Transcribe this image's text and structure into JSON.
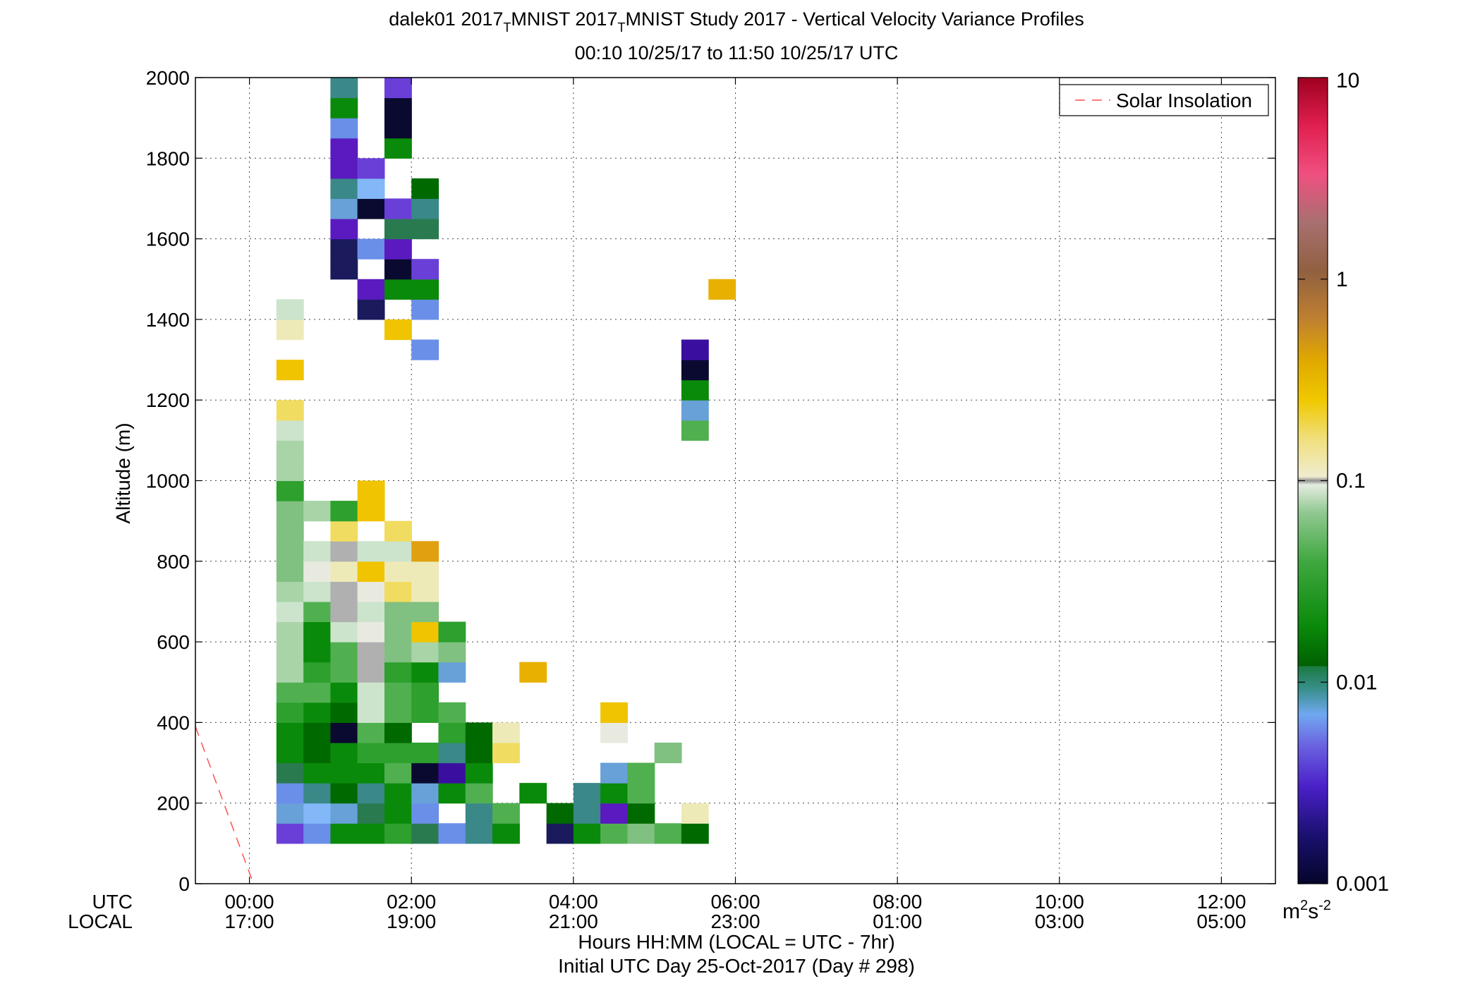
{
  "chart_data": {
    "type": "heatmap",
    "title_parts": [
      "dalek01 2017",
      "T",
      "MNIST 2017",
      "T",
      "MNIST Study 2017 - Vertical Velocity Variance Profiles"
    ],
    "subtitle": "00:10 10/25/17 to 11:50 10/25/17  UTC",
    "ylabel": "Altitude (m)",
    "xlabel": "Hours HH:MM  (LOCAL = UTC - 7hr)",
    "xlabel2": "Initial UTC Day 25-Oct-2017 (Day # 298)",
    "xaxis_row_labels": [
      "UTC",
      "LOCAL"
    ],
    "x_tick_hours": [
      0,
      2,
      4,
      6,
      8,
      10,
      12
    ],
    "x_ticks_utc": [
      "00:00",
      "02:00",
      "04:00",
      "06:00",
      "08:00",
      "10:00",
      "12:00"
    ],
    "x_ticks_local": [
      "17:00",
      "19:00",
      "21:00",
      "23:00",
      "01:00",
      "03:00",
      "05:00"
    ],
    "xlim_hours": [
      -0.667,
      12.667
    ],
    "ylim": [
      0,
      2000
    ],
    "y_ticks": [
      "0",
      "200",
      "400",
      "600",
      "800",
      "1000",
      "1200",
      "1400",
      "1600",
      "1800",
      "2000"
    ],
    "grid": true,
    "legend": {
      "label": "Solar Insolation",
      "placement": "top-right",
      "color": "#ff5050"
    },
    "solar_line": {
      "x_hours": [
        -0.667,
        0.05
      ],
      "y": [
        390,
        0
      ]
    },
    "colorbar": {
      "scale": "log",
      "range": [
        0.001,
        10
      ],
      "tick_labels": [
        "10",
        "1",
        "0.1",
        "0.01",
        "0.001"
      ],
      "units_base": "m",
      "units_sup1": "2",
      "units_mid": "s",
      "units_sup2": "-2"
    },
    "bin_width_hours": 0.3333,
    "bin_height_m": 50,
    "color_key": {
      "A": "#1a1a5c",
      "B": "#3a0fa0",
      "C": "#6a3fd8",
      "D": "#6a8fe8",
      "E": "#68a0d8",
      "F": "#3a8888",
      "G": "#2a7a50",
      "H": "#006a00",
      "I": "#0a8a0a",
      "J": "#2da02d",
      "K": "#50b050",
      "L": "#80c080",
      "M": "#a8d4a8",
      "N": "#cce4cc",
      "O": "#e8eae0",
      "P": "#eeeab8",
      "Q": "#f0dc60",
      "R": "#f0c400",
      "S": "#e8b000",
      "T": "#e0a010",
      "U": "#b0b0b0",
      "V": "#0a0a30",
      "W": "#5a1ac0",
      "X": "#82b8f8"
    },
    "cells": [
      [
        0.333,
        100,
        "C"
      ],
      [
        0.333,
        150,
        "E"
      ],
      [
        0.333,
        200,
        "D"
      ],
      [
        0.333,
        250,
        "G"
      ],
      [
        0.333,
        300,
        "I"
      ],
      [
        0.333,
        350,
        "I"
      ],
      [
        0.333,
        400,
        "J"
      ],
      [
        0.333,
        450,
        "K"
      ],
      [
        0.333,
        500,
        "M"
      ],
      [
        0.333,
        550,
        "M"
      ],
      [
        0.333,
        600,
        "M"
      ],
      [
        0.333,
        650,
        "N"
      ],
      [
        0.333,
        700,
        "M"
      ],
      [
        0.333,
        750,
        "L"
      ],
      [
        0.333,
        800,
        "L"
      ],
      [
        0.333,
        850,
        "L"
      ],
      [
        0.333,
        900,
        "L"
      ],
      [
        0.333,
        950,
        "J"
      ],
      [
        0.333,
        1000,
        "M"
      ],
      [
        0.333,
        1050,
        "M"
      ],
      [
        0.333,
        1100,
        "N"
      ],
      [
        0.333,
        1150,
        "Q"
      ],
      [
        0.333,
        1250,
        "R"
      ],
      [
        0.333,
        1350,
        "P"
      ],
      [
        0.333,
        1400,
        "N"
      ],
      [
        0.667,
        100,
        "D"
      ],
      [
        0.667,
        150,
        "X"
      ],
      [
        0.667,
        200,
        "F"
      ],
      [
        0.667,
        250,
        "I"
      ],
      [
        0.667,
        300,
        "H"
      ],
      [
        0.667,
        350,
        "H"
      ],
      [
        0.667,
        400,
        "I"
      ],
      [
        0.667,
        450,
        "K"
      ],
      [
        0.667,
        500,
        "J"
      ],
      [
        0.667,
        550,
        "I"
      ],
      [
        0.667,
        600,
        "I"
      ],
      [
        0.667,
        650,
        "K"
      ],
      [
        0.667,
        700,
        "N"
      ],
      [
        0.667,
        750,
        "O"
      ],
      [
        0.667,
        800,
        "N"
      ],
      [
        0.667,
        900,
        "M"
      ],
      [
        1.0,
        100,
        "I"
      ],
      [
        1.0,
        150,
        "E"
      ],
      [
        1.0,
        200,
        "H"
      ],
      [
        1.0,
        250,
        "I"
      ],
      [
        1.0,
        300,
        "I"
      ],
      [
        1.0,
        350,
        "V"
      ],
      [
        1.0,
        400,
        "H"
      ],
      [
        1.0,
        450,
        "I"
      ],
      [
        1.0,
        500,
        "K"
      ],
      [
        1.0,
        550,
        "K"
      ],
      [
        1.0,
        600,
        "N"
      ],
      [
        1.0,
        650,
        "U"
      ],
      [
        1.0,
        700,
        "U"
      ],
      [
        1.0,
        750,
        "P"
      ],
      [
        1.0,
        800,
        "U"
      ],
      [
        1.0,
        850,
        "Q"
      ],
      [
        1.0,
        900,
        "J"
      ],
      [
        1.0,
        1500,
        "A"
      ],
      [
        1.0,
        1550,
        "A"
      ],
      [
        1.0,
        1600,
        "W"
      ],
      [
        1.0,
        1650,
        "E"
      ],
      [
        1.0,
        1700,
        "F"
      ],
      [
        1.0,
        1750,
        "W"
      ],
      [
        1.0,
        1800,
        "W"
      ],
      [
        1.0,
        1850,
        "D"
      ],
      [
        1.0,
        1900,
        "I"
      ],
      [
        1.0,
        1950,
        "F"
      ],
      [
        1.333,
        100,
        "I"
      ],
      [
        1.333,
        150,
        "G"
      ],
      [
        1.333,
        200,
        "F"
      ],
      [
        1.333,
        250,
        "I"
      ],
      [
        1.333,
        300,
        "J"
      ],
      [
        1.333,
        350,
        "K"
      ],
      [
        1.333,
        400,
        "N"
      ],
      [
        1.333,
        450,
        "N"
      ],
      [
        1.333,
        500,
        "U"
      ],
      [
        1.333,
        550,
        "U"
      ],
      [
        1.333,
        600,
        "O"
      ],
      [
        1.333,
        650,
        "N"
      ],
      [
        1.333,
        700,
        "O"
      ],
      [
        1.333,
        750,
        "R"
      ],
      [
        1.333,
        800,
        "N"
      ],
      [
        1.333,
        900,
        "R"
      ],
      [
        1.333,
        950,
        "R"
      ],
      [
        1.333,
        1400,
        "A"
      ],
      [
        1.333,
        1450,
        "W"
      ],
      [
        1.333,
        1550,
        "D"
      ],
      [
        1.333,
        1650,
        "V"
      ],
      [
        1.333,
        1700,
        "X"
      ],
      [
        1.333,
        1750,
        "C"
      ],
      [
        1.667,
        100,
        "J"
      ],
      [
        1.667,
        150,
        "I"
      ],
      [
        1.667,
        200,
        "I"
      ],
      [
        1.667,
        250,
        "K"
      ],
      [
        1.667,
        300,
        "J"
      ],
      [
        1.667,
        350,
        "H"
      ],
      [
        1.667,
        400,
        "K"
      ],
      [
        1.667,
        450,
        "K"
      ],
      [
        1.667,
        500,
        "J"
      ],
      [
        1.667,
        550,
        "L"
      ],
      [
        1.667,
        600,
        "L"
      ],
      [
        1.667,
        650,
        "L"
      ],
      [
        1.667,
        700,
        "Q"
      ],
      [
        1.667,
        750,
        "P"
      ],
      [
        1.667,
        800,
        "N"
      ],
      [
        1.667,
        850,
        "Q"
      ],
      [
        1.667,
        1350,
        "R"
      ],
      [
        1.667,
        1450,
        "I"
      ],
      [
        1.667,
        1500,
        "V"
      ],
      [
        1.667,
        1550,
        "W"
      ],
      [
        1.667,
        1600,
        "G"
      ],
      [
        1.667,
        1650,
        "C"
      ],
      [
        1.667,
        1800,
        "I"
      ],
      [
        1.667,
        1850,
        "V"
      ],
      [
        1.667,
        1900,
        "V"
      ],
      [
        1.667,
        1950,
        "C"
      ],
      [
        2.0,
        100,
        "G"
      ],
      [
        2.0,
        150,
        "D"
      ],
      [
        2.0,
        200,
        "E"
      ],
      [
        2.0,
        250,
        "V"
      ],
      [
        2.0,
        300,
        "J"
      ],
      [
        2.0,
        400,
        "J"
      ],
      [
        2.0,
        450,
        "J"
      ],
      [
        2.0,
        500,
        "I"
      ],
      [
        2.0,
        550,
        "M"
      ],
      [
        2.0,
        600,
        "R"
      ],
      [
        2.0,
        650,
        "L"
      ],
      [
        2.0,
        700,
        "P"
      ],
      [
        2.0,
        750,
        "P"
      ],
      [
        2.0,
        800,
        "T"
      ],
      [
        2.0,
        1300,
        "D"
      ],
      [
        2.0,
        1400,
        "D"
      ],
      [
        2.0,
        1450,
        "I"
      ],
      [
        2.0,
        1500,
        "C"
      ],
      [
        2.0,
        1600,
        "G"
      ],
      [
        2.0,
        1650,
        "F"
      ],
      [
        2.0,
        1700,
        "H"
      ],
      [
        2.333,
        100,
        "D"
      ],
      [
        2.333,
        200,
        "I"
      ],
      [
        2.333,
        250,
        "B"
      ],
      [
        2.333,
        300,
        "F"
      ],
      [
        2.333,
        350,
        "J"
      ],
      [
        2.333,
        400,
        "K"
      ],
      [
        2.333,
        500,
        "E"
      ],
      [
        2.333,
        550,
        "L"
      ],
      [
        2.333,
        600,
        "J"
      ],
      [
        2.667,
        100,
        "F"
      ],
      [
        2.667,
        150,
        "F"
      ],
      [
        2.667,
        200,
        "K"
      ],
      [
        2.667,
        250,
        "I"
      ],
      [
        2.667,
        300,
        "H"
      ],
      [
        2.667,
        350,
        "H"
      ],
      [
        3.0,
        100,
        "I"
      ],
      [
        3.0,
        150,
        "K"
      ],
      [
        3.0,
        300,
        "Q"
      ],
      [
        3.0,
        350,
        "P"
      ],
      [
        3.333,
        200,
        "I"
      ],
      [
        3.333,
        500,
        "S"
      ],
      [
        3.667,
        100,
        "A"
      ],
      [
        3.667,
        150,
        "H"
      ],
      [
        4.0,
        100,
        "I"
      ],
      [
        4.0,
        150,
        "F"
      ],
      [
        4.0,
        200,
        "F"
      ],
      [
        4.333,
        100,
        "K"
      ],
      [
        4.333,
        150,
        "W"
      ],
      [
        4.333,
        200,
        "I"
      ],
      [
        4.333,
        250,
        "E"
      ],
      [
        4.333,
        350,
        "O"
      ],
      [
        4.333,
        400,
        "R"
      ],
      [
        4.667,
        100,
        "L"
      ],
      [
        4.667,
        150,
        "H"
      ],
      [
        4.667,
        200,
        "K"
      ],
      [
        4.667,
        250,
        "K"
      ],
      [
        5.0,
        100,
        "K"
      ],
      [
        5.0,
        300,
        "L"
      ],
      [
        5.333,
        100,
        "H"
      ],
      [
        5.333,
        150,
        "P"
      ],
      [
        5.333,
        1100,
        "K"
      ],
      [
        5.333,
        1150,
        "E"
      ],
      [
        5.333,
        1200,
        "I"
      ],
      [
        5.333,
        1250,
        "V"
      ],
      [
        5.333,
        1300,
        "B"
      ],
      [
        5.667,
        1450,
        "S"
      ]
    ]
  }
}
